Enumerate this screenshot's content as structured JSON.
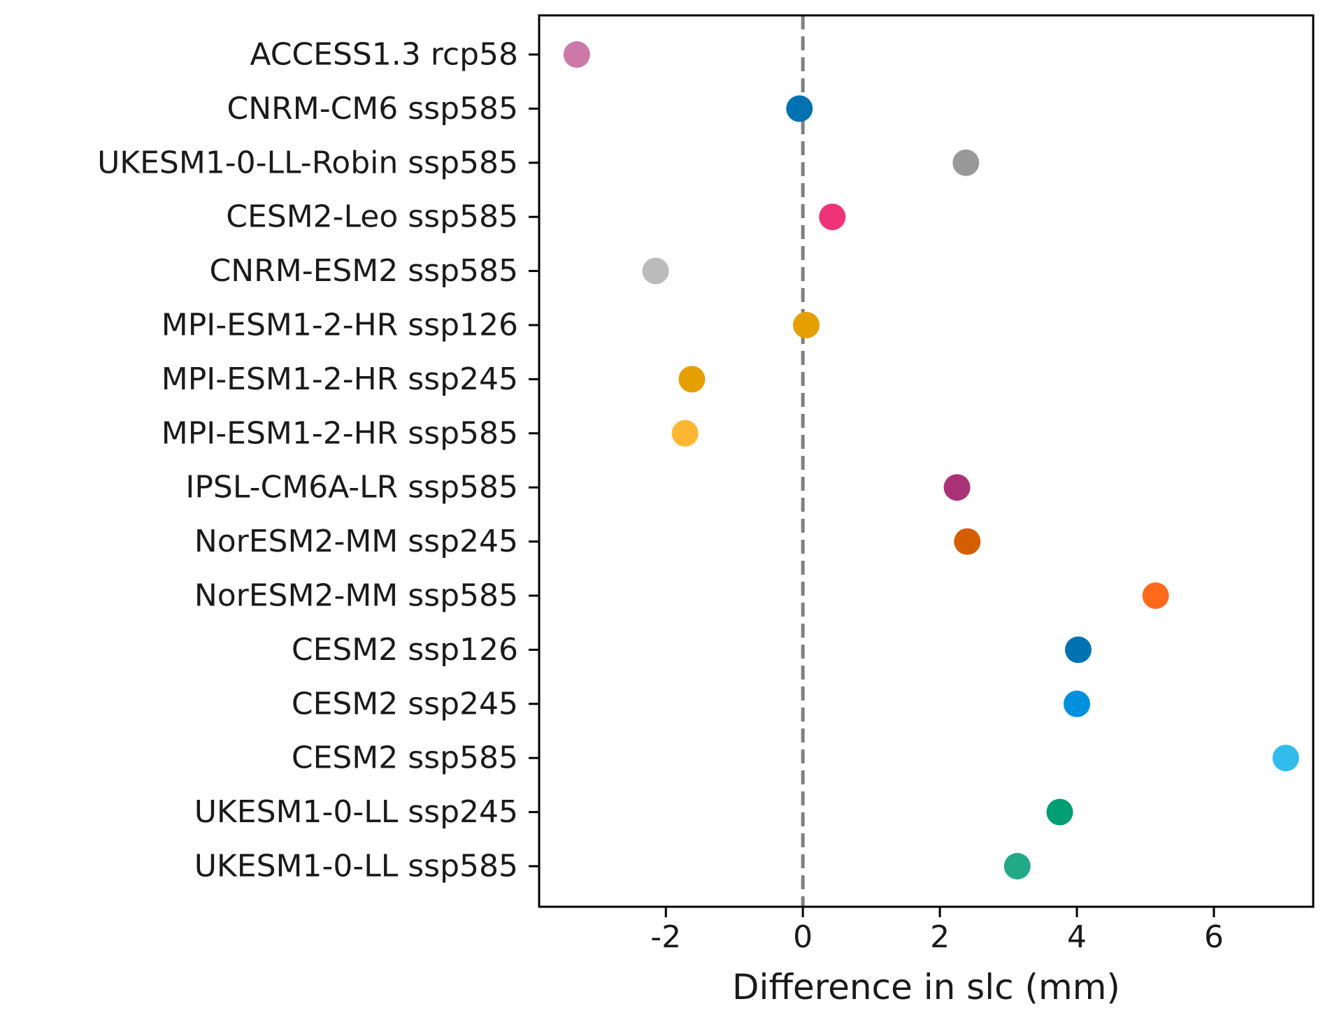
{
  "chart_data": {
    "type": "scatter",
    "title": "",
    "xlabel": "Difference in slc (mm)",
    "ylabel": "",
    "xlim": [
      -3.85,
      7.45
    ],
    "xticks": [
      -2,
      0,
      2,
      4,
      6
    ],
    "xtick_labels": [
      "-2",
      "0",
      "2",
      "4",
      "6"
    ],
    "reference_line": {
      "x": 0,
      "style": "dashed",
      "color": "#808080"
    },
    "grid": false,
    "legend": "none",
    "points": [
      {
        "label": "ACCESS1.3 rcp58",
        "value": -3.3,
        "color": "#cc79a7"
      },
      {
        "label": "CNRM-CM6 ssp585",
        "value": -0.05,
        "color": "#0072b2"
      },
      {
        "label": "UKESM1-0-LL-Robin ssp585",
        "value": 2.38,
        "color": "#999999"
      },
      {
        "label": "CESM2-Leo ssp585",
        "value": 0.43,
        "color": "#ee3377"
      },
      {
        "label": "CNRM-ESM2 ssp585",
        "value": -2.15,
        "color": "#bbbbbb"
      },
      {
        "label": "MPI-ESM1-2-HR ssp126",
        "value": 0.05,
        "color": "#e69f00"
      },
      {
        "label": "MPI-ESM1-2-HR ssp245",
        "value": -1.62,
        "color": "#e69f00"
      },
      {
        "label": "MPI-ESM1-2-HR ssp585",
        "value": -1.72,
        "color": "#ffb733"
      },
      {
        "label": "IPSL-CM6A-LR ssp585",
        "value": 2.25,
        "color": "#aa3377"
      },
      {
        "label": "NorESM2-MM ssp245",
        "value": 2.4,
        "color": "#d55e00"
      },
      {
        "label": "NorESM2-MM ssp585",
        "value": 5.15,
        "color": "#ff6a1a"
      },
      {
        "label": "CESM2 ssp126",
        "value": 4.02,
        "color": "#0072b2"
      },
      {
        "label": "CESM2 ssp245",
        "value": 4.0,
        "color": "#0090dd"
      },
      {
        "label": "CESM2 ssp585",
        "value": 7.05,
        "color": "#33bbee"
      },
      {
        "label": "UKESM1-0-LL ssp245",
        "value": 3.75,
        "color": "#009e73"
      },
      {
        "label": "UKESM1-0-LL ssp585",
        "value": 3.13,
        "color": "#22aa88"
      }
    ]
  }
}
